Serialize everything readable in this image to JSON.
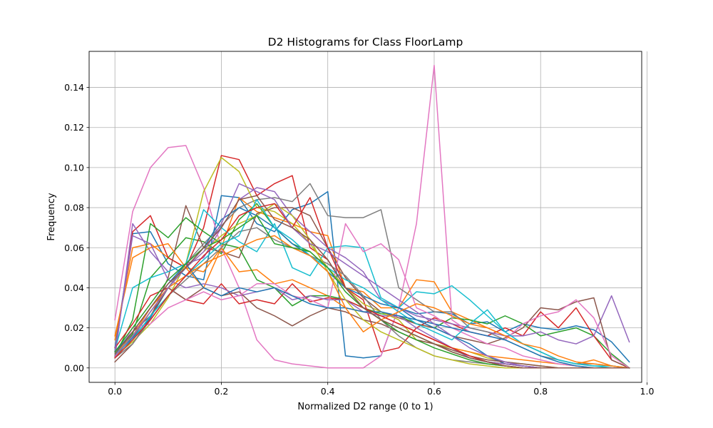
{
  "chart_data": {
    "type": "line",
    "title": "D2 Histograms for Class FloorLamp",
    "xlabel": "Normalized D2 range (0 to 1)",
    "ylabel": "Frequency",
    "xlim": [
      -0.0485,
      0.99
    ],
    "ylim": [
      -0.0072,
      0.158
    ],
    "xticks": [
      0.0,
      0.2,
      0.4,
      0.6,
      0.8,
      1.0
    ],
    "xtick_labels": [
      "0.0",
      "0.2",
      "0.4",
      "0.6",
      "0.8",
      "1.0"
    ],
    "yticks": [
      0.0,
      0.02,
      0.04,
      0.06,
      0.08,
      0.1,
      0.12,
      0.14
    ],
    "ytick_labels": [
      "0.00",
      "0.02",
      "0.04",
      "0.06",
      "0.08",
      "0.10",
      "0.12",
      "0.14"
    ],
    "grid": true,
    "x": [
      0.0,
      0.0333,
      0.0667,
      0.1,
      0.1333,
      0.1667,
      0.2,
      0.2333,
      0.2667,
      0.3,
      0.3333,
      0.3667,
      0.4,
      0.4333,
      0.4667,
      0.5,
      0.5333,
      0.5667,
      0.6,
      0.6333,
      0.6667,
      0.7,
      0.7333,
      0.7667,
      0.8,
      0.8333,
      0.8667,
      0.9,
      0.9333,
      0.9667
    ],
    "series": [
      {
        "color": "#1f77b4",
        "values": [
          0.01,
          0.067,
          0.068,
          0.052,
          0.046,
          0.044,
          0.086,
          0.085,
          0.072,
          0.068,
          0.079,
          0.082,
          0.088,
          0.006,
          0.005,
          0.006,
          0.03,
          0.027,
          0.028,
          0.027,
          0.022,
          0.023,
          0.018,
          0.022,
          0.02,
          0.019,
          0.021,
          0.019,
          0.013,
          0.003
        ]
      },
      {
        "color": "#ff7f0e",
        "values": [
          0.014,
          0.06,
          0.062,
          0.055,
          0.05,
          0.048,
          0.06,
          0.085,
          0.078,
          0.075,
          0.072,
          0.068,
          0.066,
          0.04,
          0.038,
          0.03,
          0.03,
          0.044,
          0.043,
          0.028,
          0.024,
          0.02,
          0.016,
          0.012,
          0.008,
          0.004,
          0.002,
          0.004,
          0.001,
          0.0
        ]
      },
      {
        "color": "#2ca02c",
        "values": [
          0.005,
          0.017,
          0.045,
          0.055,
          0.065,
          0.063,
          0.057,
          0.074,
          0.082,
          0.07,
          0.062,
          0.058,
          0.05,
          0.04,
          0.03,
          0.027,
          0.026,
          0.022,
          0.02,
          0.025,
          0.024,
          0.022,
          0.026,
          0.022,
          0.016,
          0.018,
          0.02,
          0.016,
          0.007,
          0.0
        ]
      },
      {
        "color": "#d62728",
        "values": [
          0.008,
          0.068,
          0.076,
          0.055,
          0.05,
          0.07,
          0.106,
          0.104,
          0.086,
          0.092,
          0.096,
          0.06,
          0.054,
          0.04,
          0.034,
          0.008,
          0.01,
          0.02,
          0.025,
          0.022,
          0.018,
          0.016,
          0.02,
          0.016,
          0.028,
          0.02,
          0.03,
          0.016,
          0.004,
          0.0
        ]
      },
      {
        "color": "#9467bd",
        "values": [
          0.005,
          0.072,
          0.058,
          0.048,
          0.052,
          0.055,
          0.07,
          0.084,
          0.09,
          0.088,
          0.076,
          0.068,
          0.06,
          0.055,
          0.048,
          0.034,
          0.03,
          0.026,
          0.024,
          0.022,
          0.02,
          0.018,
          0.016,
          0.016,
          0.018,
          0.014,
          0.012,
          0.016,
          0.036,
          0.013
        ]
      },
      {
        "color": "#8c564b",
        "values": [
          0.003,
          0.012,
          0.025,
          0.045,
          0.081,
          0.06,
          0.058,
          0.055,
          0.077,
          0.08,
          0.08,
          0.076,
          0.06,
          0.045,
          0.035,
          0.028,
          0.025,
          0.022,
          0.02,
          0.016,
          0.014,
          0.012,
          0.015,
          0.02,
          0.03,
          0.029,
          0.033,
          0.035,
          0.004,
          0.0
        ]
      },
      {
        "color": "#e377c2",
        "values": [
          0.024,
          0.078,
          0.1,
          0.11,
          0.111,
          0.09,
          0.06,
          0.04,
          0.014,
          0.004,
          0.002,
          0.001,
          0.0,
          0.0,
          0.0,
          0.006,
          0.03,
          0.072,
          0.151,
          0.024,
          0.018,
          0.016,
          0.014,
          0.022,
          0.026,
          0.028,
          0.034,
          0.025,
          0.006,
          0.0
        ]
      },
      {
        "color": "#7f7f7f",
        "values": [
          0.006,
          0.015,
          0.028,
          0.04,
          0.052,
          0.062,
          0.071,
          0.08,
          0.084,
          0.085,
          0.083,
          0.092,
          0.076,
          0.075,
          0.075,
          0.079,
          0.04,
          0.034,
          0.028,
          0.028,
          0.02,
          0.018,
          0.014,
          0.01,
          0.006,
          0.004,
          0.002,
          0.002,
          0.001,
          0.0
        ]
      },
      {
        "color": "#bcbd22",
        "values": [
          0.006,
          0.013,
          0.022,
          0.035,
          0.052,
          0.088,
          0.105,
          0.098,
          0.08,
          0.078,
          0.072,
          0.062,
          0.05,
          0.04,
          0.032,
          0.028,
          0.024,
          0.014,
          0.012,
          0.01,
          0.008,
          0.005,
          0.003,
          0.002,
          0.001,
          0.0,
          0.0,
          0.0,
          0.0,
          0.0
        ]
      },
      {
        "color": "#17becf",
        "values": [
          0.009,
          0.04,
          0.045,
          0.048,
          0.052,
          0.079,
          0.07,
          0.063,
          0.058,
          0.072,
          0.05,
          0.046,
          0.06,
          0.061,
          0.06,
          0.035,
          0.03,
          0.038,
          0.037,
          0.041,
          0.034,
          0.026,
          0.018,
          0.012,
          0.008,
          0.004,
          0.002,
          0.001,
          0.001,
          0.0
        ]
      },
      {
        "color": "#1f77b4",
        "values": [
          0.006,
          0.015,
          0.025,
          0.04,
          0.05,
          0.06,
          0.074,
          0.08,
          0.076,
          0.07,
          0.062,
          0.056,
          0.048,
          0.04,
          0.036,
          0.032,
          0.03,
          0.024,
          0.02,
          0.016,
          0.012,
          0.006,
          0.002,
          0.001,
          0.0,
          0.0,
          0.0,
          0.0,
          0.0,
          0.0
        ]
      },
      {
        "color": "#ff7f0e",
        "values": [
          0.016,
          0.055,
          0.06,
          0.062,
          0.05,
          0.04,
          0.06,
          0.048,
          0.049,
          0.042,
          0.044,
          0.04,
          0.036,
          0.03,
          0.028,
          0.026,
          0.022,
          0.018,
          0.014,
          0.01,
          0.008,
          0.006,
          0.005,
          0.004,
          0.003,
          0.002,
          0.001,
          0.0,
          0.0,
          0.0
        ]
      },
      {
        "color": "#2ca02c",
        "values": [
          0.006,
          0.024,
          0.072,
          0.065,
          0.075,
          0.068,
          0.062,
          0.06,
          0.044,
          0.04,
          0.031,
          0.036,
          0.036,
          0.034,
          0.03,
          0.024,
          0.02,
          0.016,
          0.012,
          0.008,
          0.005,
          0.003,
          0.002,
          0.001,
          0.0,
          0.0,
          0.0,
          0.0,
          0.0,
          0.0
        ]
      },
      {
        "color": "#d62728",
        "values": [
          0.01,
          0.022,
          0.036,
          0.04,
          0.034,
          0.032,
          0.042,
          0.032,
          0.034,
          0.032,
          0.042,
          0.033,
          0.035,
          0.034,
          0.03,
          0.026,
          0.022,
          0.018,
          0.014,
          0.01,
          0.006,
          0.003,
          0.002,
          0.001,
          0.0,
          0.0,
          0.0,
          0.0,
          0.0,
          0.0
        ]
      },
      {
        "color": "#9467bd",
        "values": [
          0.008,
          0.066,
          0.062,
          0.044,
          0.04,
          0.042,
          0.04,
          0.036,
          0.038,
          0.04,
          0.034,
          0.036,
          0.034,
          0.034,
          0.028,
          0.026,
          0.026,
          0.02,
          0.015,
          0.01,
          0.005,
          0.003,
          0.002,
          0.001,
          0.0,
          0.0,
          0.0,
          0.0,
          0.0,
          0.0
        ]
      },
      {
        "color": "#8c564b",
        "values": [
          0.006,
          0.018,
          0.026,
          0.04,
          0.034,
          0.04,
          0.036,
          0.038,
          0.03,
          0.026,
          0.021,
          0.026,
          0.03,
          0.028,
          0.024,
          0.022,
          0.018,
          0.014,
          0.012,
          0.009,
          0.006,
          0.004,
          0.003,
          0.002,
          0.001,
          0.0,
          0.0,
          0.0,
          0.0,
          0.0
        ]
      },
      {
        "color": "#e377c2",
        "values": [
          0.005,
          0.02,
          0.022,
          0.03,
          0.034,
          0.038,
          0.034,
          0.036,
          0.042,
          0.042,
          0.036,
          0.034,
          0.03,
          0.072,
          0.058,
          0.062,
          0.054,
          0.03,
          0.026,
          0.02,
          0.016,
          0.012,
          0.01,
          0.006,
          0.004,
          0.002,
          0.001,
          0.0,
          0.0,
          0.0
        ]
      },
      {
        "color": "#7f7f7f",
        "values": [
          0.005,
          0.012,
          0.024,
          0.036,
          0.044,
          0.052,
          0.06,
          0.068,
          0.07,
          0.064,
          0.06,
          0.056,
          0.052,
          0.046,
          0.036,
          0.024,
          0.016,
          0.01,
          0.006,
          0.004,
          0.003,
          0.002,
          0.001,
          0.0,
          0.0,
          0.0,
          0.0,
          0.0,
          0.0,
          0.0
        ]
      },
      {
        "color": "#bcbd22",
        "values": [
          0.007,
          0.016,
          0.028,
          0.04,
          0.05,
          0.058,
          0.066,
          0.072,
          0.076,
          0.082,
          0.076,
          0.064,
          0.048,
          0.034,
          0.024,
          0.018,
          0.014,
          0.01,
          0.006,
          0.004,
          0.002,
          0.001,
          0.0,
          0.0,
          0.0,
          0.0,
          0.0,
          0.0,
          0.0,
          0.0
        ]
      },
      {
        "color": "#17becf",
        "values": [
          0.007,
          0.014,
          0.026,
          0.036,
          0.046,
          0.054,
          0.062,
          0.066,
          0.084,
          0.07,
          0.064,
          0.056,
          0.05,
          0.044,
          0.04,
          0.034,
          0.028,
          0.022,
          0.018,
          0.014,
          0.022,
          0.029,
          0.018,
          0.012,
          0.008,
          0.004,
          0.002,
          0.001,
          0.0,
          0.0
        ]
      },
      {
        "color": "#1f77b4",
        "values": [
          0.008,
          0.018,
          0.03,
          0.042,
          0.052,
          0.04,
          0.036,
          0.04,
          0.038,
          0.04,
          0.036,
          0.032,
          0.03,
          0.03,
          0.028,
          0.028,
          0.026,
          0.024,
          0.022,
          0.02,
          0.018,
          0.016,
          0.014,
          0.01,
          0.006,
          0.003,
          0.001,
          0.0,
          0.0,
          0.0
        ]
      },
      {
        "color": "#ff7f0e",
        "values": [
          0.006,
          0.016,
          0.03,
          0.04,
          0.046,
          0.052,
          0.056,
          0.06,
          0.064,
          0.066,
          0.06,
          0.056,
          0.048,
          0.03,
          0.018,
          0.024,
          0.028,
          0.032,
          0.03,
          0.026,
          0.022,
          0.02,
          0.016,
          0.012,
          0.01,
          0.006,
          0.003,
          0.002,
          0.001,
          0.0
        ]
      },
      {
        "color": "#2ca02c",
        "values": [
          0.008,
          0.02,
          0.032,
          0.044,
          0.052,
          0.06,
          0.064,
          0.07,
          0.076,
          0.062,
          0.06,
          0.058,
          0.05,
          0.038,
          0.03,
          0.024,
          0.018,
          0.014,
          0.01,
          0.007,
          0.004,
          0.002,
          0.001,
          0.0,
          0.0,
          0.0,
          0.0,
          0.0,
          0.0,
          0.0
        ]
      },
      {
        "color": "#d62728",
        "values": [
          0.005,
          0.014,
          0.024,
          0.036,
          0.046,
          0.056,
          0.064,
          0.076,
          0.08,
          0.082,
          0.07,
          0.085,
          0.06,
          0.04,
          0.03,
          0.026,
          0.022,
          0.018,
          0.014,
          0.01,
          0.006,
          0.003,
          0.001,
          0.0,
          0.0,
          0.0,
          0.0,
          0.0,
          0.0,
          0.0
        ]
      },
      {
        "color": "#9467bd",
        "values": [
          0.006,
          0.016,
          0.028,
          0.04,
          0.05,
          0.058,
          0.072,
          0.092,
          0.088,
          0.084,
          0.07,
          0.062,
          0.058,
          0.052,
          0.046,
          0.04,
          0.034,
          0.028,
          0.022,
          0.016,
          0.01,
          0.006,
          0.003,
          0.001,
          0.0,
          0.0,
          0.0,
          0.0,
          0.0,
          0.0
        ]
      },
      {
        "color": "#8c564b",
        "values": [
          0.007,
          0.018,
          0.03,
          0.042,
          0.05,
          0.06,
          0.07,
          0.084,
          0.086,
          0.074,
          0.07,
          0.064,
          0.054,
          0.04,
          0.03,
          0.024,
          0.02,
          0.016,
          0.012,
          0.008,
          0.005,
          0.003,
          0.001,
          0.0,
          0.0,
          0.0,
          0.0,
          0.0,
          0.0,
          0.0
        ]
      }
    ]
  }
}
